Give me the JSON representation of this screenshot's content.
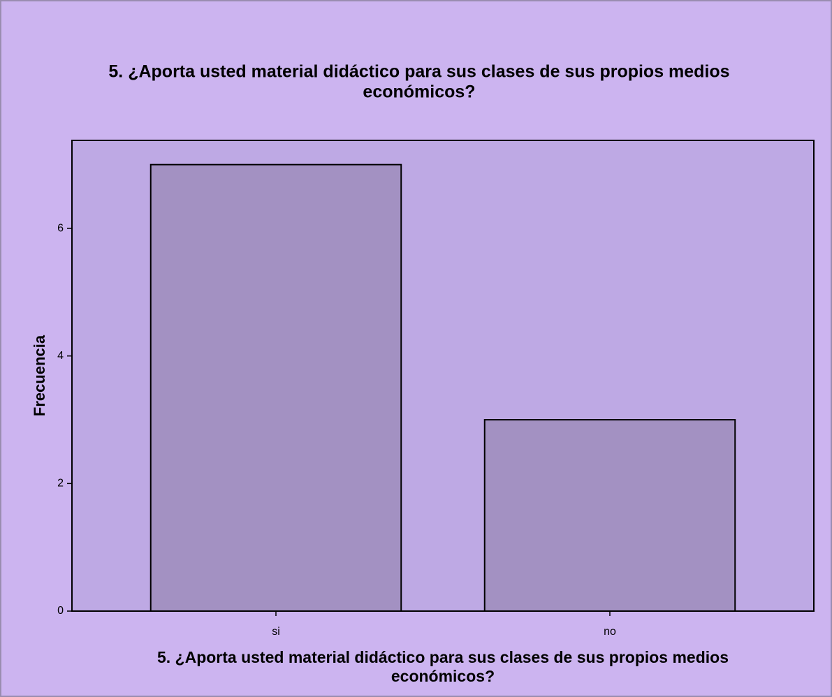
{
  "chart_data": {
    "type": "bar",
    "title": [
      "5. ¿Aporta usted material didáctico para sus clases de sus propios medios",
      "económicos?"
    ],
    "xlabel": [
      "5. ¿Aporta usted material didáctico para sus clases de sus propios medios",
      "económicos?"
    ],
    "ylabel": "Frecuencia",
    "categories": [
      "si",
      "no"
    ],
    "values": [
      7,
      3
    ],
    "color": "#a391c2",
    "ylim": [
      0,
      7.38
    ],
    "yticks": [
      0,
      2,
      4,
      6
    ],
    "grid": false
  }
}
